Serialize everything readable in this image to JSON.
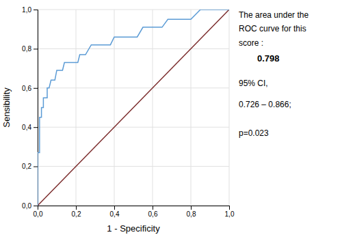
{
  "chart_data": {
    "type": "line",
    "xlabel": "1 - Specificity",
    "ylabel": "Sensibility",
    "series": [
      {
        "x": [
          0,
          1
        ],
        "values": [
          0,
          1
        ],
        "color": "#7b2c2c"
      },
      {
        "x": [
          0.0,
          0.0,
          0.0,
          0.0,
          0.01,
          0.01,
          0.01,
          0.02,
          0.02,
          0.03,
          0.03,
          0.04,
          0.05,
          0.05,
          0.06,
          0.07,
          0.08,
          0.09,
          0.1,
          0.11,
          0.12,
          0.13,
          0.14,
          0.15,
          0.16,
          0.17,
          0.19,
          0.2,
          0.21,
          0.22,
          0.25,
          0.28,
          0.3,
          0.32,
          0.35,
          0.38,
          0.4,
          0.42,
          0.43,
          0.45,
          0.48,
          0.5,
          0.52,
          0.55,
          0.58,
          0.6,
          0.62,
          0.65,
          0.68,
          0.7,
          0.75,
          0.78,
          0.8,
          0.85,
          1.0
        ],
        "values": [
          0.0,
          0.05,
          0.1,
          0.27,
          0.27,
          0.36,
          0.45,
          0.45,
          0.5,
          0.5,
          0.55,
          0.55,
          0.55,
          0.6,
          0.6,
          0.64,
          0.64,
          0.64,
          0.69,
          0.69,
          0.69,
          0.69,
          0.73,
          0.73,
          0.73,
          0.73,
          0.73,
          0.73,
          0.73,
          0.77,
          0.77,
          0.82,
          0.82,
          0.82,
          0.82,
          0.82,
          0.86,
          0.86,
          0.86,
          0.86,
          0.86,
          0.86,
          0.86,
          0.91,
          0.91,
          0.91,
          0.91,
          0.91,
          0.95,
          0.95,
          0.95,
          0.95,
          0.95,
          1.0,
          1.0
        ],
        "color": "#5b9bd5"
      }
    ],
    "xlim": [
      0.0,
      1.0
    ],
    "ylim": [
      0.0,
      1.0
    ],
    "xticks": [
      {
        "value": 0.0,
        "label": "0,0"
      },
      {
        "value": 0.2,
        "label": "0,2"
      },
      {
        "value": 0.4,
        "label": "0,4"
      },
      {
        "value": 0.6,
        "label": "0,6"
      },
      {
        "value": 0.8,
        "label": "0,8"
      },
      {
        "value": 1.0,
        "label": "1,0"
      }
    ],
    "yticks": [
      {
        "value": 0.0,
        "label": "0,0"
      },
      {
        "value": 0.2,
        "label": "0,2"
      },
      {
        "value": 0.4,
        "label": "0,4"
      },
      {
        "value": 0.6,
        "label": "0,6"
      },
      {
        "value": 0.8,
        "label": "0,8"
      },
      {
        "value": 1.0,
        "label": "1,0"
      }
    ],
    "grid": true,
    "annotations": [
      "The area under the",
      "ROC curve for this",
      "score :",
      "0.798",
      "95% CI,",
      "0.726 – 0.866;",
      "p=0.023"
    ]
  }
}
